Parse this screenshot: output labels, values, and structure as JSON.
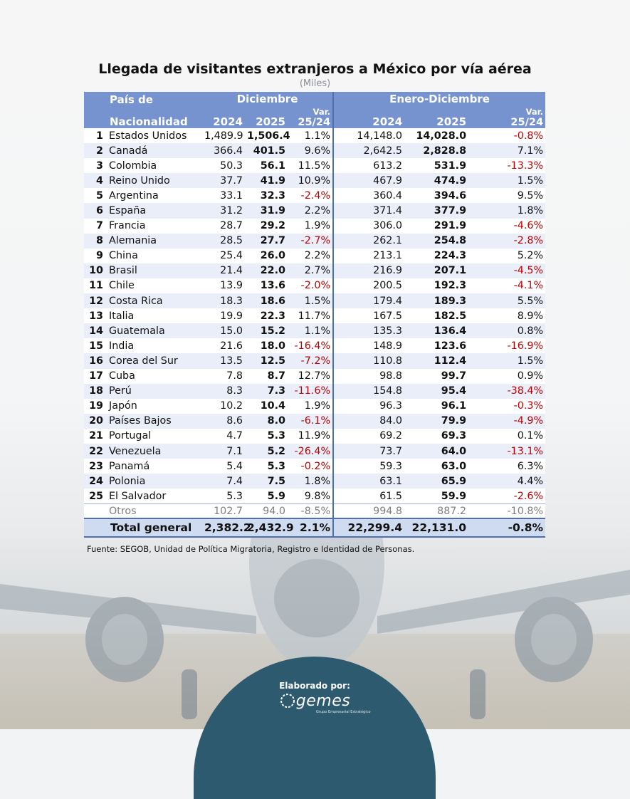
{
  "title": "Llegada de visitantes extranjeros a México por vía aérea",
  "subtitle": "(Miles)",
  "headers": {
    "country_l1": "País de",
    "country_l2": "Nacionalidad",
    "group_dec": "Diciembre",
    "group_year": "Enero-Diciembre",
    "y2024": "2024",
    "y2025": "2025",
    "var_l1": "Var.",
    "var_l2": "25/24"
  },
  "rows": [
    {
      "rank": "1",
      "country": "Estados Unidos",
      "dec_2024": "1,489.9",
      "dec_2025": "1,506.4",
      "dec_var": "1.1%",
      "yr_2024": "14,148.0",
      "yr_2025": "14,028.0",
      "yr_var": "-0.8%"
    },
    {
      "rank": "2",
      "country": "Canadá",
      "dec_2024": "366.4",
      "dec_2025": "401.5",
      "dec_var": "9.6%",
      "yr_2024": "2,642.5",
      "yr_2025": "2,828.8",
      "yr_var": "7.1%"
    },
    {
      "rank": "3",
      "country": "Colombia",
      "dec_2024": "50.3",
      "dec_2025": "56.1",
      "dec_var": "11.5%",
      "yr_2024": "613.2",
      "yr_2025": "531.9",
      "yr_var": "-13.3%"
    },
    {
      "rank": "4",
      "country": "Reino Unido",
      "dec_2024": "37.7",
      "dec_2025": "41.9",
      "dec_var": "10.9%",
      "yr_2024": "467.9",
      "yr_2025": "474.9",
      "yr_var": "1.5%"
    },
    {
      "rank": "5",
      "country": "Argentina",
      "dec_2024": "33.1",
      "dec_2025": "32.3",
      "dec_var": "-2.4%",
      "yr_2024": "360.4",
      "yr_2025": "394.6",
      "yr_var": "9.5%"
    },
    {
      "rank": "6",
      "country": "España",
      "dec_2024": "31.2",
      "dec_2025": "31.9",
      "dec_var": "2.2%",
      "yr_2024": "371.4",
      "yr_2025": "377.9",
      "yr_var": "1.8%"
    },
    {
      "rank": "7",
      "country": "Francia",
      "dec_2024": "28.7",
      "dec_2025": "29.2",
      "dec_var": "1.9%",
      "yr_2024": "306.0",
      "yr_2025": "291.9",
      "yr_var": "-4.6%"
    },
    {
      "rank": "8",
      "country": "Alemania",
      "dec_2024": "28.5",
      "dec_2025": "27.7",
      "dec_var": "-2.7%",
      "yr_2024": "262.1",
      "yr_2025": "254.8",
      "yr_var": "-2.8%"
    },
    {
      "rank": "9",
      "country": "China",
      "dec_2024": "25.4",
      "dec_2025": "26.0",
      "dec_var": "2.2%",
      "yr_2024": "213.1",
      "yr_2025": "224.3",
      "yr_var": "5.2%"
    },
    {
      "rank": "10",
      "country": "Brasil",
      "dec_2024": "21.4",
      "dec_2025": "22.0",
      "dec_var": "2.7%",
      "yr_2024": "216.9",
      "yr_2025": "207.1",
      "yr_var": "-4.5%"
    },
    {
      "rank": "11",
      "country": "Chile",
      "dec_2024": "13.9",
      "dec_2025": "13.6",
      "dec_var": "-2.0%",
      "yr_2024": "200.5",
      "yr_2025": "192.3",
      "yr_var": "-4.1%"
    },
    {
      "rank": "12",
      "country": "Costa Rica",
      "dec_2024": "18.3",
      "dec_2025": "18.6",
      "dec_var": "1.5%",
      "yr_2024": "179.4",
      "yr_2025": "189.3",
      "yr_var": "5.5%"
    },
    {
      "rank": "13",
      "country": "Italia",
      "dec_2024": "19.9",
      "dec_2025": "22.3",
      "dec_var": "11.7%",
      "yr_2024": "167.5",
      "yr_2025": "182.5",
      "yr_var": "8.9%"
    },
    {
      "rank": "14",
      "country": "Guatemala",
      "dec_2024": "15.0",
      "dec_2025": "15.2",
      "dec_var": "1.1%",
      "yr_2024": "135.3",
      "yr_2025": "136.4",
      "yr_var": "0.8%"
    },
    {
      "rank": "15",
      "country": "India",
      "dec_2024": "21.6",
      "dec_2025": "18.0",
      "dec_var": "-16.4%",
      "yr_2024": "148.9",
      "yr_2025": "123.6",
      "yr_var": "-16.9%"
    },
    {
      "rank": "16",
      "country": "Corea del Sur",
      "dec_2024": "13.5",
      "dec_2025": "12.5",
      "dec_var": "-7.2%",
      "yr_2024": "110.8",
      "yr_2025": "112.4",
      "yr_var": "1.5%"
    },
    {
      "rank": "17",
      "country": "Cuba",
      "dec_2024": "7.8",
      "dec_2025": "8.7",
      "dec_var": "12.7%",
      "yr_2024": "98.8",
      "yr_2025": "99.7",
      "yr_var": "0.9%"
    },
    {
      "rank": "18",
      "country": "Perú",
      "dec_2024": "8.3",
      "dec_2025": "7.3",
      "dec_var": "-11.6%",
      "yr_2024": "154.8",
      "yr_2025": "95.4",
      "yr_var": "-38.4%"
    },
    {
      "rank": "19",
      "country": "Japón",
      "dec_2024": "10.2",
      "dec_2025": "10.4",
      "dec_var": "1.9%",
      "yr_2024": "96.3",
      "yr_2025": "96.1",
      "yr_var": "-0.3%"
    },
    {
      "rank": "20",
      "country": "Países Bajos",
      "dec_2024": "8.6",
      "dec_2025": "8.0",
      "dec_var": "-6.1%",
      "yr_2024": "84.0",
      "yr_2025": "79.9",
      "yr_var": "-4.9%"
    },
    {
      "rank": "21",
      "country": "Portugal",
      "dec_2024": "4.7",
      "dec_2025": "5.3",
      "dec_var": "11.9%",
      "yr_2024": "69.2",
      "yr_2025": "69.3",
      "yr_var": "0.1%"
    },
    {
      "rank": "22",
      "country": "Venezuela",
      "dec_2024": "7.1",
      "dec_2025": "5.2",
      "dec_var": "-26.4%",
      "yr_2024": "73.7",
      "yr_2025": "64.0",
      "yr_var": "-13.1%"
    },
    {
      "rank": "23",
      "country": "Panamá",
      "dec_2024": "5.4",
      "dec_2025": "5.3",
      "dec_var": "-0.2%",
      "yr_2024": "59.3",
      "yr_2025": "63.0",
      "yr_var": "6.3%"
    },
    {
      "rank": "24",
      "country": "Polonia",
      "dec_2024": "7.4",
      "dec_2025": "7.5",
      "dec_var": "1.8%",
      "yr_2024": "63.1",
      "yr_2025": "65.9",
      "yr_var": "4.4%"
    },
    {
      "rank": "25",
      "country": "El Salvador",
      "dec_2024": "5.3",
      "dec_2025": "5.9",
      "dec_var": "9.8%",
      "yr_2024": "61.5",
      "yr_2025": "59.9",
      "yr_var": "-2.6%"
    }
  ],
  "otros": {
    "country": "Otros",
    "dec_2024": "102.7",
    "dec_2025": "94.0",
    "dec_var": "-8.5%",
    "yr_2024": "994.8",
    "yr_2025": "887.2",
    "yr_var": "-10.8%"
  },
  "total": {
    "label": "Total general",
    "dec_2024": "2,382.2",
    "dec_2025": "2,432.9",
    "dec_var": "2.1%",
    "yr_2024": "22,299.4",
    "yr_2025": "22,131.0",
    "yr_var": "-0.8%"
  },
  "source": "Fuente: SEGOB, Unidad de Política Migratoria, Registro e Identidad de Personas.",
  "footer": {
    "elaborado": "Elaborado por:",
    "logo_text": "gemes",
    "logo_sub": "Grupo Empresarial Estratégico"
  },
  "colors": {
    "header_blue": "#7693cf",
    "negative_red": "#c00000",
    "footer_navy": "#2e5a70"
  }
}
